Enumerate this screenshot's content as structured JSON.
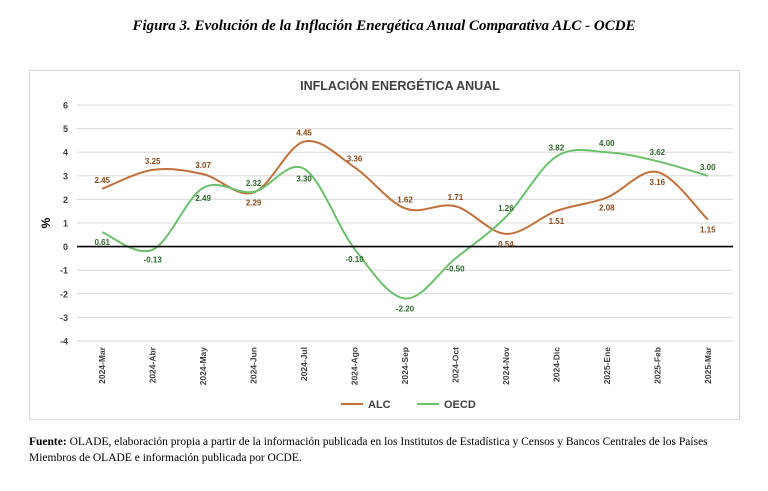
{
  "figure_title": "Figura 3. Evolución de la Inflación Energética Anual Comparativa ALC - OCDE",
  "source": {
    "label": "Fuente:",
    "text": " OLADE, elaboración propia a partir de la información publicada en los Institutos de Estadística y Censos y Bancos Centrales de los Países Miembros de OLADE e información publicada por OCDE."
  },
  "chart_data": {
    "type": "line",
    "title": "INFLACIÓN ENERGÉTICA ANUAL",
    "xlabel": "",
    "ylabel": "%",
    "ylim": [
      -4,
      6
    ],
    "yticks": [
      -4,
      -3,
      -2,
      -1,
      0,
      1,
      2,
      3,
      4,
      5,
      6
    ],
    "grid": true,
    "legend_position": "bottom",
    "categories": [
      "2024-Mar",
      "2024-Abr",
      "2024-May",
      "2024-Jun",
      "2024-Jul",
      "2024-Ago",
      "2024-Sep",
      "2024-Oct",
      "2024-Nov",
      "2024-Dic",
      "2025-Ene",
      "2025-Feb",
      "2025-Mar"
    ],
    "series": [
      {
        "name": "ALC",
        "color": "#c0703a",
        "values": [
          2.45,
          3.25,
          3.07,
          2.29,
          4.45,
          3.36,
          1.62,
          1.71,
          0.54,
          1.51,
          2.08,
          3.16,
          1.15
        ],
        "labels": [
          "2.45",
          "3.25",
          "3.07",
          "2.29",
          "4.45",
          "3.36",
          "1.62",
          "1.71",
          "0.54",
          "1.51",
          "2.08",
          "3.16",
          "1.15"
        ]
      },
      {
        "name": "OECD",
        "color": "#6cc06c",
        "values": [
          0.61,
          -0.13,
          2.49,
          2.32,
          3.3,
          -0.1,
          -2.2,
          -0.5,
          1.26,
          3.82,
          4.0,
          3.62,
          3.0
        ],
        "labels": [
          "0.61",
          "-0.13",
          "2.49",
          "2.32",
          "3.30",
          "-0.10",
          "-2.20",
          "-0.50",
          "1.26",
          "3.82",
          "4.00",
          "3.62",
          "3.00"
        ]
      }
    ]
  }
}
